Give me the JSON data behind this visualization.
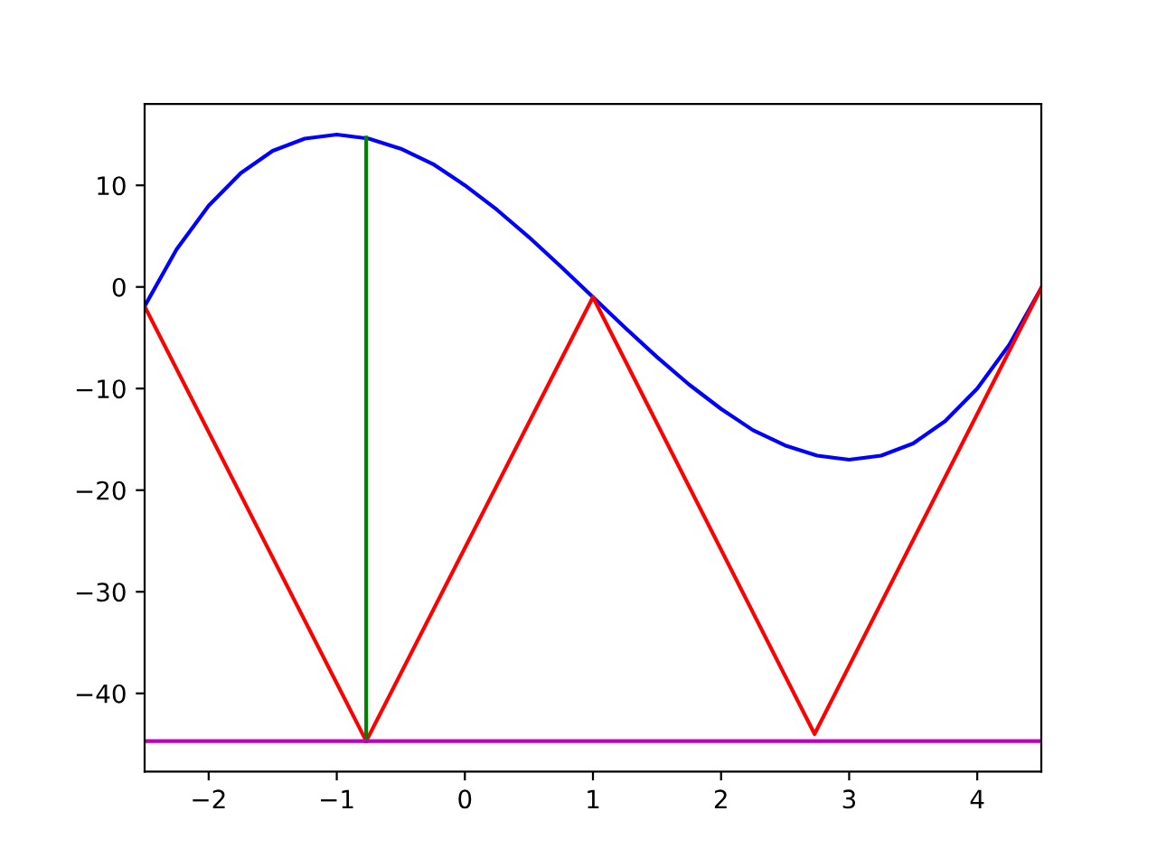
{
  "chart_data": {
    "type": "line",
    "xlim": [
      -2.5,
      4.5
    ],
    "ylim": [
      -47.7,
      18
    ],
    "xticks": [
      {
        "value": -2,
        "label": "−2"
      },
      {
        "value": -1,
        "label": "−1"
      },
      0,
      1,
      2,
      3,
      4
    ],
    "yticks": [
      {
        "value": -40,
        "label": "−40"
      },
      {
        "value": -30,
        "label": "−30"
      },
      {
        "value": -20,
        "label": "−20"
      },
      {
        "value": -10,
        "label": "−10"
      },
      0,
      10
    ],
    "grid": false,
    "legend": false,
    "marker": "none",
    "line_style": "solid",
    "series": [
      {
        "color": "#0000ff",
        "x": [
          -2.5,
          -2.25,
          -2,
          -1.75,
          -1.5,
          -1.25,
          -1,
          -0.75,
          -0.5,
          -0.25,
          0,
          0.25,
          0.5,
          0.75,
          1,
          1.25,
          1.5,
          1.75,
          2,
          2.25,
          2.5,
          2.75,
          3,
          3.25,
          3.5,
          3.75,
          4,
          4.25,
          4.5
        ],
        "values": [
          -1.9,
          3.7,
          8,
          11.2,
          13.4,
          14.6,
          15,
          14.6,
          13.6,
          12.1,
          10,
          7.6,
          4.9,
          2,
          -1,
          -4,
          -6.9,
          -9.6,
          -12,
          -14.1,
          -15.6,
          -16.6,
          -17,
          -16.6,
          -15.4,
          -13.2,
          -10,
          -5.7,
          -0.1
        ]
      },
      {
        "color": "#ff0000",
        "x": [
          -2.5,
          -0.77,
          1,
          2.73,
          4.5
        ],
        "values": [
          -1.9,
          -44.7,
          -1,
          -44,
          -0.1
        ]
      },
      {
        "color": "#008000",
        "x": [
          -0.77,
          -0.77
        ],
        "values": [
          -44.7,
          14.7
        ]
      }
    ],
    "ref_lines": [
      {
        "axis": "y",
        "value": -44.7,
        "color": "#bf00bf",
        "line_style": "solid"
      }
    ]
  }
}
